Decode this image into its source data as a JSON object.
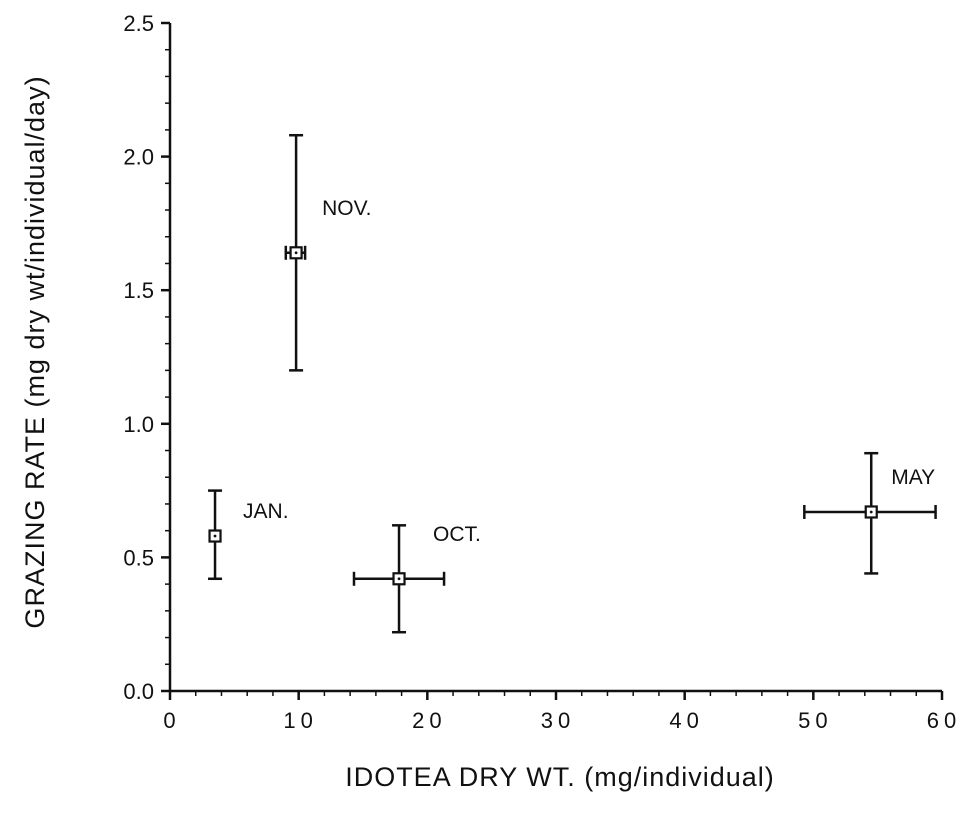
{
  "chart_data": {
    "type": "scatter",
    "xlabel": "IDOTEA DRY WT. (mg/individual)",
    "ylabel": "GRAZING RATE (mg dry wt/individual/day)",
    "xlim": [
      0,
      60
    ],
    "ylim": [
      0,
      2.5
    ],
    "x_ticks": [
      0,
      10,
      20,
      30,
      40,
      50,
      60
    ],
    "y_ticks": [
      0.0,
      0.5,
      1.0,
      1.5,
      2.0,
      2.5
    ],
    "x_tick_labels": [
      "0",
      "10",
      "20",
      "30",
      "40",
      "50",
      "60"
    ],
    "y_tick_labels": [
      "0.0",
      "0.5",
      "1.0",
      "1.5",
      "2.0",
      "2.5"
    ],
    "grid": false,
    "points": [
      {
        "label": "NOV.",
        "x": 9.8,
        "y": 1.64,
        "x_err": [
          9.0,
          10.5
        ],
        "y_err": [
          1.2,
          2.08
        ]
      },
      {
        "label": "JAN.",
        "x": 3.5,
        "y": 0.58,
        "x_err": null,
        "y_err": [
          0.42,
          0.75
        ]
      },
      {
        "label": "OCT.",
        "x": 17.8,
        "y": 0.42,
        "x_err": [
          14.3,
          21.3
        ],
        "y_err": [
          0.22,
          0.62
        ]
      },
      {
        "label": "MAY",
        "x": 54.5,
        "y": 0.67,
        "x_err": [
          49.3,
          59.5
        ],
        "y_err": [
          0.44,
          0.89
        ]
      }
    ]
  }
}
